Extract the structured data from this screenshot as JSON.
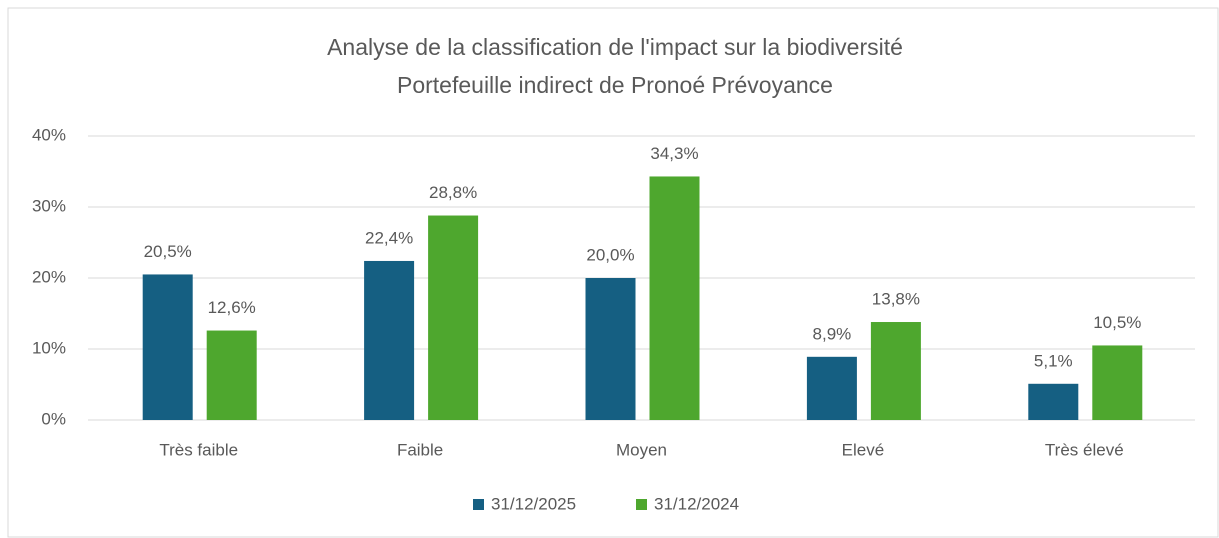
{
  "chart_data": {
    "type": "bar",
    "title": "Analyse de la classification de l'impact sur la biodiversité",
    "subtitle": "Portefeuille indirect de Pronoé Prévoyance",
    "categories": [
      "Très faible",
      "Faible",
      "Moyen",
      "Elevé",
      "Très élevé"
    ],
    "series": [
      {
        "name": "31/12/2025",
        "color": "#155f82",
        "values": [
          20.5,
          22.4,
          20.0,
          8.9,
          5.1
        ],
        "value_labels": [
          "20,5%",
          "22,4%",
          "20,0%",
          "8,9%",
          "5,1%"
        ]
      },
      {
        "name": "31/12/2024",
        "color": "#4ea72e",
        "values": [
          12.6,
          28.8,
          34.3,
          13.8,
          10.5
        ],
        "value_labels": [
          "12,6%",
          "28,8%",
          "34,3%",
          "13,8%",
          "10,5%"
        ]
      }
    ],
    "ylim": [
      0,
      40
    ],
    "yticks": [
      {
        "value": 0,
        "label": "0%"
      },
      {
        "value": 10,
        "label": "10%"
      },
      {
        "value": 20,
        "label": "20%"
      },
      {
        "value": 30,
        "label": "30%"
      },
      {
        "value": 40,
        "label": "40%"
      }
    ],
    "grid": true,
    "legend": "bottom"
  }
}
